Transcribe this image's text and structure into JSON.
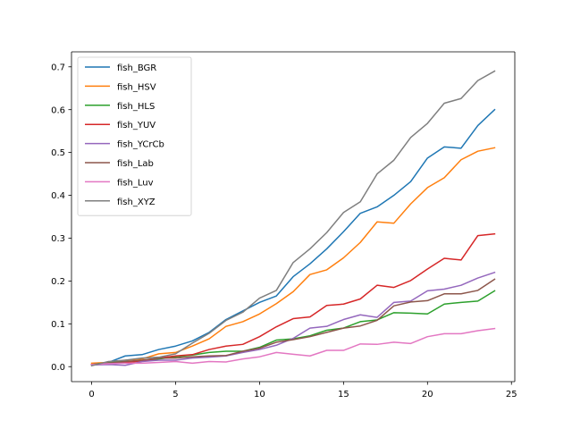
{
  "chart_data": {
    "type": "line",
    "title": "",
    "xlabel": "",
    "ylabel": "",
    "xlim": [
      -1.2,
      25.2
    ],
    "ylim": [
      -0.035,
      0.735
    ],
    "xticks": [
      0,
      5,
      10,
      15,
      20,
      25
    ],
    "yticks": [
      0.0,
      0.1,
      0.2,
      0.3,
      0.4,
      0.5,
      0.6,
      0.7
    ],
    "xtick_labels": [
      "0",
      "5",
      "10",
      "15",
      "20",
      "25"
    ],
    "ytick_labels": [
      "0.0",
      "0.1",
      "0.2",
      "0.3",
      "0.4",
      "0.5",
      "0.6",
      "0.7"
    ],
    "grid": false,
    "legend_position": "top-left",
    "x": [
      0,
      1,
      2,
      3,
      4,
      5,
      6,
      7,
      8,
      9,
      10,
      11,
      12,
      13,
      14,
      15,
      16,
      17,
      18,
      19,
      20,
      21,
      22,
      23,
      24
    ],
    "series": [
      {
        "name": "fish_BGR",
        "color": "#1f77b4",
        "values": [
          0.005,
          0.01,
          0.025,
          0.028,
          0.04,
          0.048,
          0.06,
          0.08,
          0.11,
          0.13,
          0.15,
          0.165,
          0.21,
          0.24,
          0.275,
          0.315,
          0.358,
          0.373,
          0.4,
          0.432,
          0.487,
          0.513,
          0.51,
          0.563,
          0.6
        ]
      },
      {
        "name": "fish_HSV",
        "color": "#ff7f0e",
        "values": [
          0.008,
          0.01,
          0.015,
          0.018,
          0.03,
          0.033,
          0.048,
          0.065,
          0.094,
          0.105,
          0.123,
          0.147,
          0.175,
          0.215,
          0.226,
          0.254,
          0.29,
          0.338,
          0.335,
          0.38,
          0.418,
          0.441,
          0.483,
          0.503,
          0.511
        ]
      },
      {
        "name": "fish_HLS",
        "color": "#2ca02c",
        "values": [
          0.005,
          0.01,
          0.012,
          0.013,
          0.018,
          0.023,
          0.027,
          0.033,
          0.036,
          0.036,
          0.045,
          0.062,
          0.065,
          0.072,
          0.085,
          0.09,
          0.105,
          0.109,
          0.126,
          0.125,
          0.123,
          0.146,
          0.15,
          0.153,
          0.177
        ]
      },
      {
        "name": "fish_YUV",
        "color": "#d62728",
        "values": [
          0.005,
          0.008,
          0.01,
          0.013,
          0.02,
          0.025,
          0.028,
          0.04,
          0.048,
          0.052,
          0.07,
          0.093,
          0.112,
          0.116,
          0.143,
          0.146,
          0.158,
          0.19,
          0.185,
          0.201,
          0.228,
          0.253,
          0.249,
          0.306,
          0.31
        ]
      },
      {
        "name": "fish_YCrCb",
        "color": "#9467bd",
        "values": [
          0.004,
          0.005,
          0.003,
          0.012,
          0.015,
          0.015,
          0.02,
          0.022,
          0.025,
          0.033,
          0.04,
          0.05,
          0.066,
          0.09,
          0.094,
          0.11,
          0.121,
          0.115,
          0.15,
          0.153,
          0.177,
          0.181,
          0.19,
          0.207,
          0.22
        ]
      },
      {
        "name": "fish_Lab",
        "color": "#8c564b",
        "values": [
          0.005,
          0.008,
          0.012,
          0.015,
          0.02,
          0.02,
          0.023,
          0.025,
          0.026,
          0.036,
          0.043,
          0.057,
          0.063,
          0.07,
          0.08,
          0.09,
          0.095,
          0.108,
          0.142,
          0.151,
          0.154,
          0.17,
          0.17,
          0.178,
          0.204
        ]
      },
      {
        "name": "fish_Luv",
        "color": "#e377c2",
        "values": [
          0.005,
          0.007,
          0.008,
          0.008,
          0.01,
          0.012,
          0.008,
          0.012,
          0.011,
          0.018,
          0.023,
          0.033,
          0.029,
          0.025,
          0.038,
          0.038,
          0.053,
          0.052,
          0.057,
          0.054,
          0.07,
          0.077,
          0.077,
          0.084,
          0.089
        ]
      },
      {
        "name": "fish_XYZ",
        "color": "#7f7f7f",
        "values": [
          0.002,
          0.012,
          0.015,
          0.02,
          0.022,
          0.03,
          0.055,
          0.078,
          0.108,
          0.127,
          0.16,
          0.178,
          0.243,
          0.275,
          0.313,
          0.36,
          0.385,
          0.45,
          0.482,
          0.535,
          0.568,
          0.615,
          0.626,
          0.668,
          0.69
        ]
      }
    ]
  }
}
